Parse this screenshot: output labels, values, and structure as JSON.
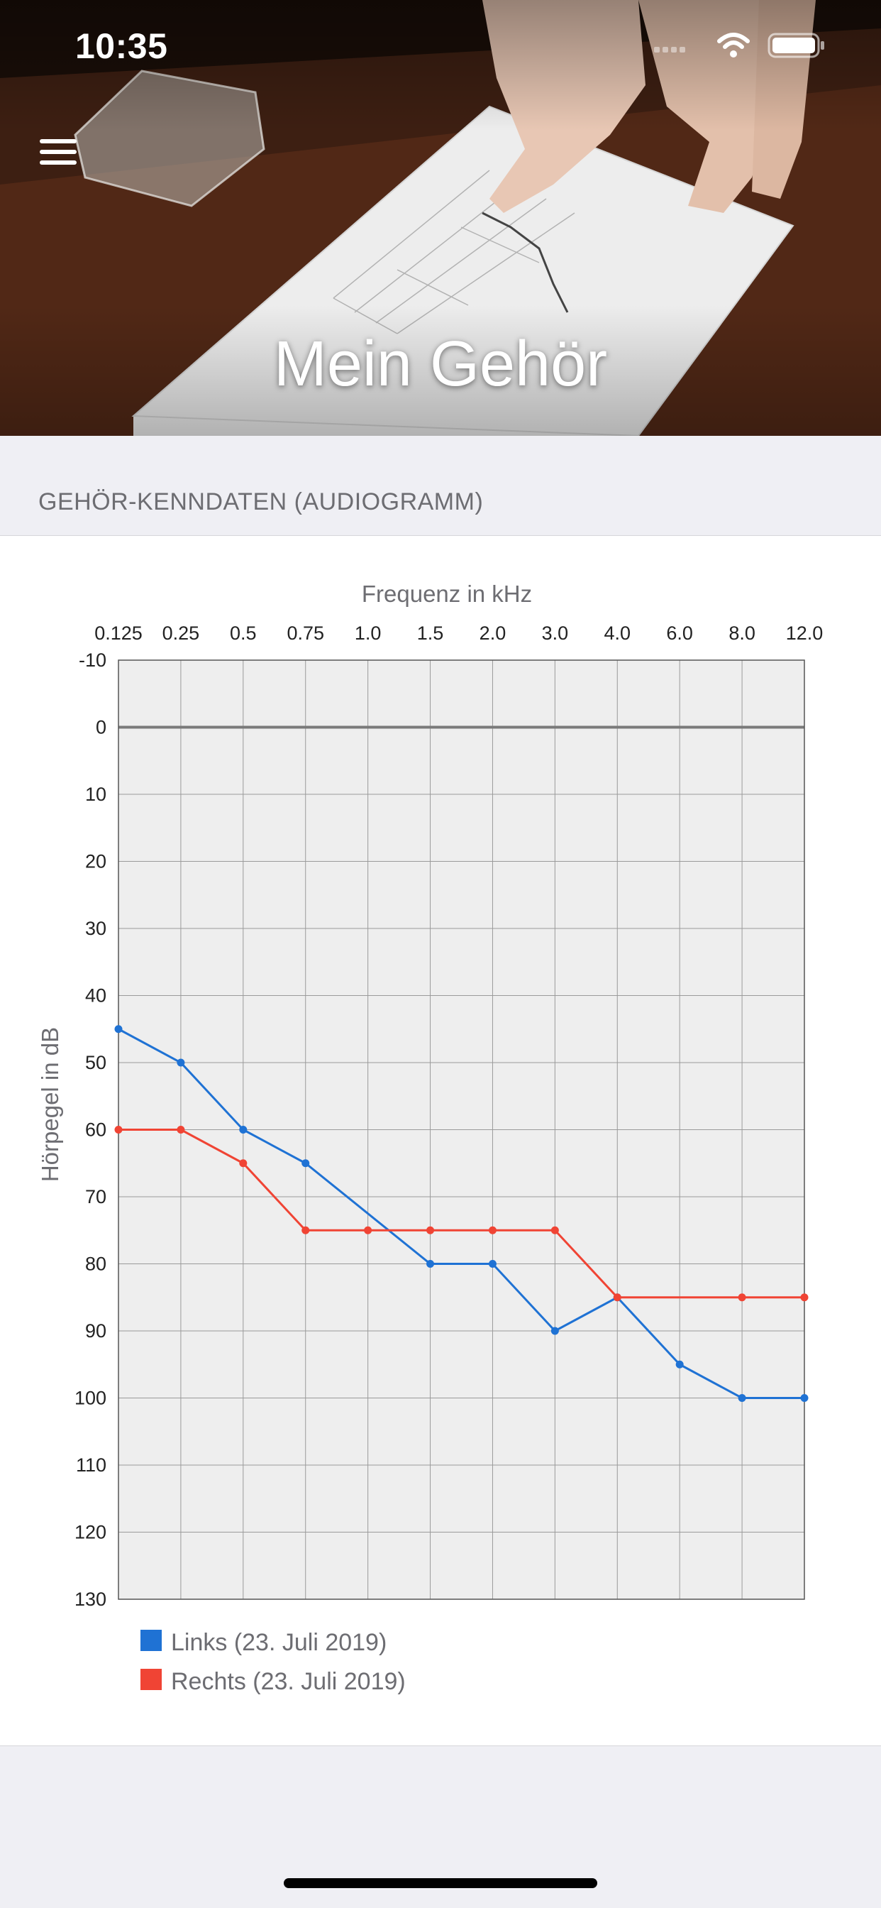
{
  "status_bar": {
    "time": "10:35"
  },
  "header": {
    "title": "Mein Gehör",
    "menu_icon": "hamburger-menu-icon"
  },
  "section": {
    "title": "GEHÖR-KENNDATEN (AUDIOGRAMM)"
  },
  "colors": {
    "left": "#1f72d4",
    "right": "#f04434",
    "plot_background": "#eeeeee",
    "page_background": "#efeff4"
  },
  "chart_data": {
    "type": "line",
    "xlabel": "Frequenz in kHz",
    "ylabel": "Hörpegel in dB",
    "x_position": "top",
    "categories": [
      "0.125",
      "0.25",
      "0.5",
      "0.75",
      "1.0",
      "1.5",
      "2.0",
      "3.0",
      "4.0",
      "6.0",
      "8.0",
      "12.0"
    ],
    "ylim": [
      -10,
      130
    ],
    "y_inverted": true,
    "yticks": [
      -10,
      0,
      10,
      20,
      30,
      40,
      50,
      60,
      70,
      80,
      90,
      100,
      110,
      120,
      130
    ],
    "grid": true,
    "legend_position": "bottom-left",
    "series": [
      {
        "name": "Links (23. Juli 2019)",
        "color": "#1f72d4",
        "points": [
          {
            "x": "0.125",
            "y": 45
          },
          {
            "x": "0.25",
            "y": 50
          },
          {
            "x": "0.5",
            "y": 60
          },
          {
            "x": "0.75",
            "y": 65
          },
          {
            "x": "1.5",
            "y": 80
          },
          {
            "x": "2.0",
            "y": 80
          },
          {
            "x": "3.0",
            "y": 90
          },
          {
            "x": "4.0",
            "y": 85
          },
          {
            "x": "6.0",
            "y": 95
          },
          {
            "x": "8.0",
            "y": 100
          },
          {
            "x": "12.0",
            "y": 100
          }
        ]
      },
      {
        "name": "Rechts (23. Juli 2019)",
        "color": "#f04434",
        "points": [
          {
            "x": "0.125",
            "y": 60
          },
          {
            "x": "0.25",
            "y": 60
          },
          {
            "x": "0.5",
            "y": 65
          },
          {
            "x": "0.75",
            "y": 75
          },
          {
            "x": "1.0",
            "y": 75
          },
          {
            "x": "1.5",
            "y": 75
          },
          {
            "x": "2.0",
            "y": 75
          },
          {
            "x": "3.0",
            "y": 75
          },
          {
            "x": "4.0",
            "y": 85
          },
          {
            "x": "8.0",
            "y": 85
          },
          {
            "x": "12.0",
            "y": 85
          }
        ]
      }
    ]
  }
}
